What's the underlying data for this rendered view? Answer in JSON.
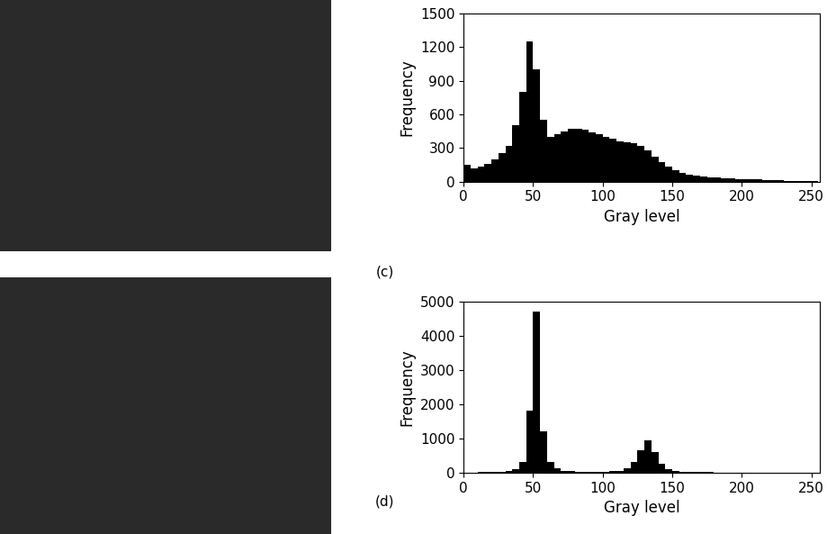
{
  "chart_data": [
    {
      "type": "histogram",
      "panel": "(c)",
      "x_label": "Gray level",
      "y_label": "Frequency",
      "color": "#000000",
      "bins": [
        0,
        5,
        10,
        15,
        20,
        25,
        30,
        35,
        40,
        45,
        50,
        55,
        60,
        65,
        70,
        75,
        80,
        85,
        90,
        95,
        100,
        105,
        110,
        115,
        120,
        125,
        130,
        135,
        140,
        145,
        150,
        155,
        160,
        165,
        170,
        175,
        180,
        185,
        190,
        195,
        200,
        205,
        210,
        215,
        220,
        225,
        230,
        235,
        240,
        245,
        250,
        255
      ],
      "counts": [
        150,
        120,
        130,
        160,
        200,
        250,
        320,
        500,
        800,
        1250,
        1000,
        550,
        400,
        420,
        450,
        470,
        470,
        460,
        440,
        420,
        400,
        380,
        360,
        350,
        340,
        320,
        280,
        220,
        170,
        130,
        100,
        80,
        65,
        55,
        45,
        40,
        35,
        30,
        28,
        25,
        22,
        20,
        18,
        15,
        12,
        10,
        8,
        6,
        5,
        4,
        3
      ],
      "xlim": [
        0,
        256
      ],
      "xticks": [
        0,
        50,
        100,
        150,
        200,
        250
      ],
      "ylim": [
        0,
        1500
      ],
      "yticks": [
        0,
        300,
        600,
        900,
        1200,
        1500
      ]
    },
    {
      "type": "histogram",
      "panel": "(d)",
      "x_label": "Gray level",
      "y_label": "Frequency",
      "color": "#000000",
      "bins": [
        0,
        5,
        10,
        15,
        20,
        25,
        30,
        35,
        40,
        45,
        50,
        55,
        60,
        65,
        70,
        75,
        80,
        85,
        90,
        95,
        100,
        105,
        110,
        115,
        120,
        125,
        130,
        135,
        140,
        145,
        150,
        155,
        160,
        165,
        170,
        175,
        180,
        185,
        190,
        195,
        200,
        205,
        210,
        215,
        220,
        225,
        230,
        235,
        240,
        245,
        250,
        255
      ],
      "counts": [
        5,
        8,
        10,
        12,
        15,
        20,
        40,
        100,
        300,
        1800,
        4700,
        1200,
        300,
        120,
        60,
        35,
        25,
        20,
        20,
        22,
        25,
        35,
        60,
        120,
        300,
        650,
        950,
        600,
        250,
        100,
        50,
        30,
        20,
        15,
        12,
        10,
        8,
        7,
        6,
        5,
        4,
        4,
        3,
        3,
        2,
        2,
        2,
        1,
        1,
        1,
        1
      ],
      "xlim": [
        0,
        256
      ],
      "xticks": [
        0,
        50,
        100,
        150,
        200,
        250
      ],
      "ylim": [
        0,
        5000
      ],
      "yticks": [
        0,
        1000,
        2000,
        3000,
        4000,
        5000
      ]
    }
  ]
}
